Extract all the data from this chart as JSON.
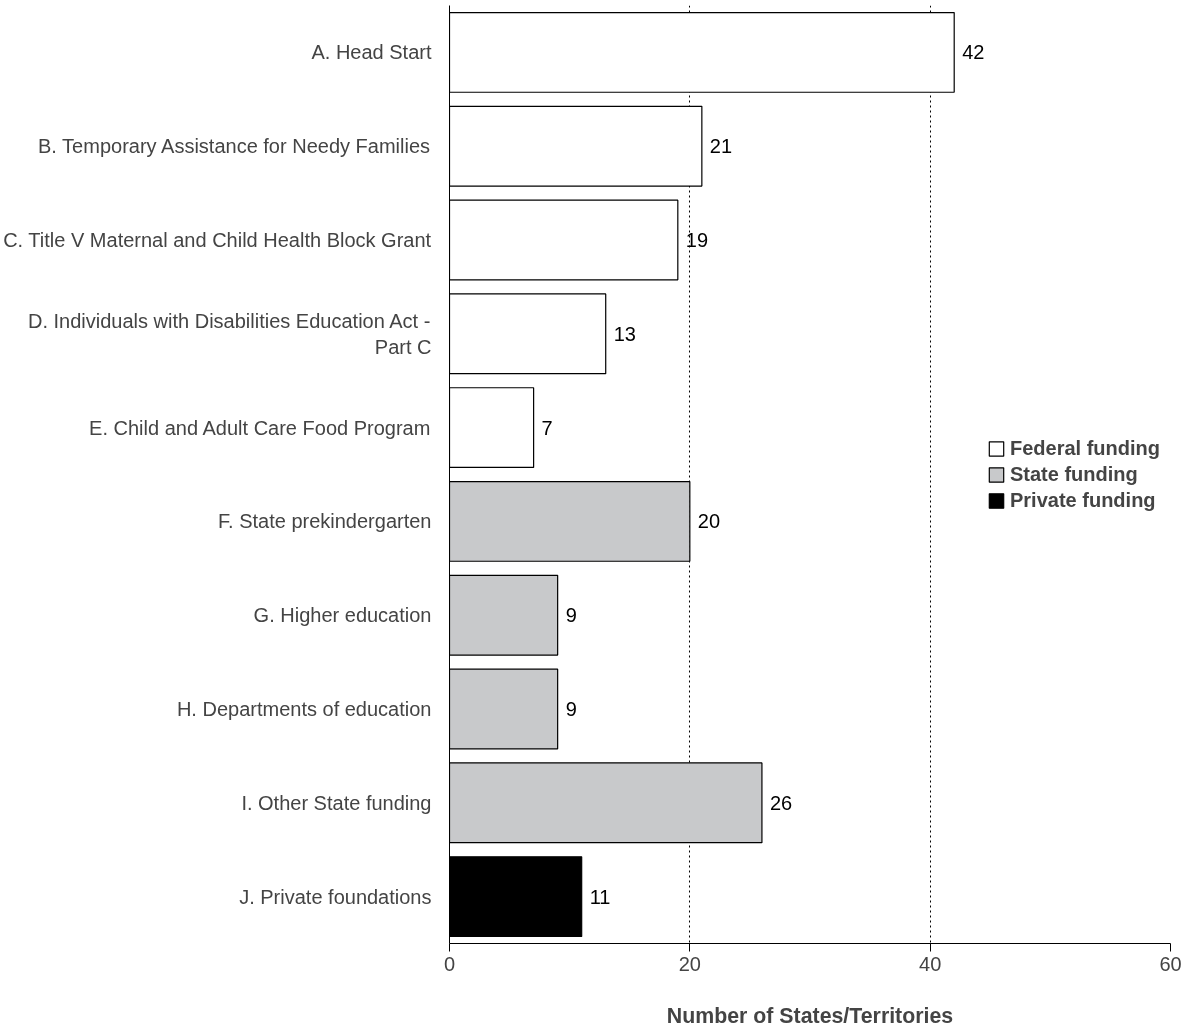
{
  "chart_data": {
    "type": "bar",
    "orientation": "horizontal",
    "categories": [
      "A. Head Start",
      "B. Temporary Assistance for Needy Families",
      "C. Title V Maternal and Child Health Block Grant",
      "D. Individuals with Disabilities Education Act - Part C",
      "E. Child and Adult Care Food Program",
      "F. State prekindergarten",
      "G. Higher education",
      "H. Departments of education",
      "I. Other State funding",
      "J. Private foundations"
    ],
    "series": [
      {
        "name": "Federal funding",
        "color": "#ffffff",
        "values": [
          42,
          21,
          19,
          13,
          7,
          null,
          null,
          null,
          null,
          null
        ]
      },
      {
        "name": "State funding",
        "color": "#c8c9cb",
        "values": [
          null,
          null,
          null,
          null,
          null,
          20,
          9,
          9,
          26,
          null
        ]
      },
      {
        "name": "Private funding",
        "color": "#000000",
        "values": [
          null,
          null,
          null,
          null,
          null,
          null,
          null,
          null,
          null,
          11
        ]
      }
    ],
    "xlabel": "Number of States/Territories",
    "xlim": [
      0,
      60
    ],
    "xticks": [
      0,
      20,
      40,
      60
    ],
    "grid": "x",
    "legend": "right",
    "data_labels": true
  }
}
